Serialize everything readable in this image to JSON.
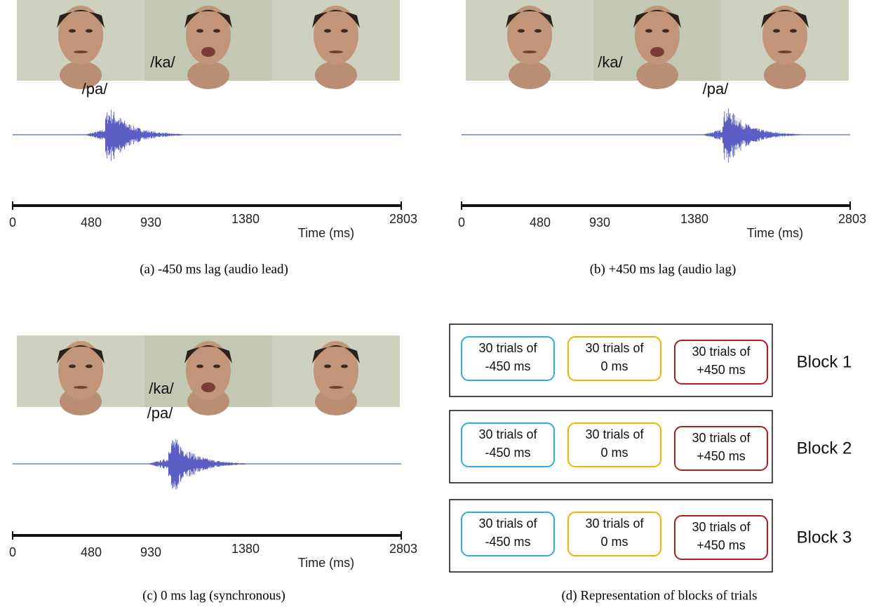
{
  "panels": [
    {
      "caption": "(a) -450 ms lag (audio lead)",
      "video_label": "/ka/",
      "audio_label": "/pa/",
      "ticks": [
        0,
        480,
        930,
        1380,
        2803
      ],
      "axis_label": "Time (ms)"
    },
    {
      "caption": "(b) +450 ms lag (audio lag)",
      "video_label": "/ka/",
      "audio_label": "/pa/",
      "ticks": [
        0,
        480,
        930,
        1380,
        2803
      ],
      "axis_label": "Time (ms)"
    },
    {
      "caption": "(c) 0 ms lag (synchronous)",
      "video_label": "/ka/",
      "audio_label": "/pa/",
      "ticks": [
        0,
        480,
        930,
        1380,
        2803
      ],
      "axis_label": "Time (ms)"
    }
  ],
  "blocks": {
    "caption": "(d) Representation of blocks of trials",
    "rows": [
      {
        "label": "Block 1",
        "trials": [
          [
            "30 trials of",
            "-450 ms"
          ],
          [
            "30 trials of",
            "0 ms"
          ],
          [
            "30 trials of",
            "+450 ms"
          ]
        ]
      },
      {
        "label": "Block 2",
        "trials": [
          [
            "30 trials of",
            "-450 ms"
          ],
          [
            "30 trials of",
            "0 ms"
          ],
          [
            "30 trials of",
            "+450 ms"
          ]
        ]
      },
      {
        "label": "Block 3",
        "trials": [
          [
            "30 trials of",
            "-450 ms"
          ],
          [
            "30 trials of",
            "0 ms"
          ],
          [
            "30 trials of",
            "+450 ms"
          ]
        ]
      }
    ]
  }
}
